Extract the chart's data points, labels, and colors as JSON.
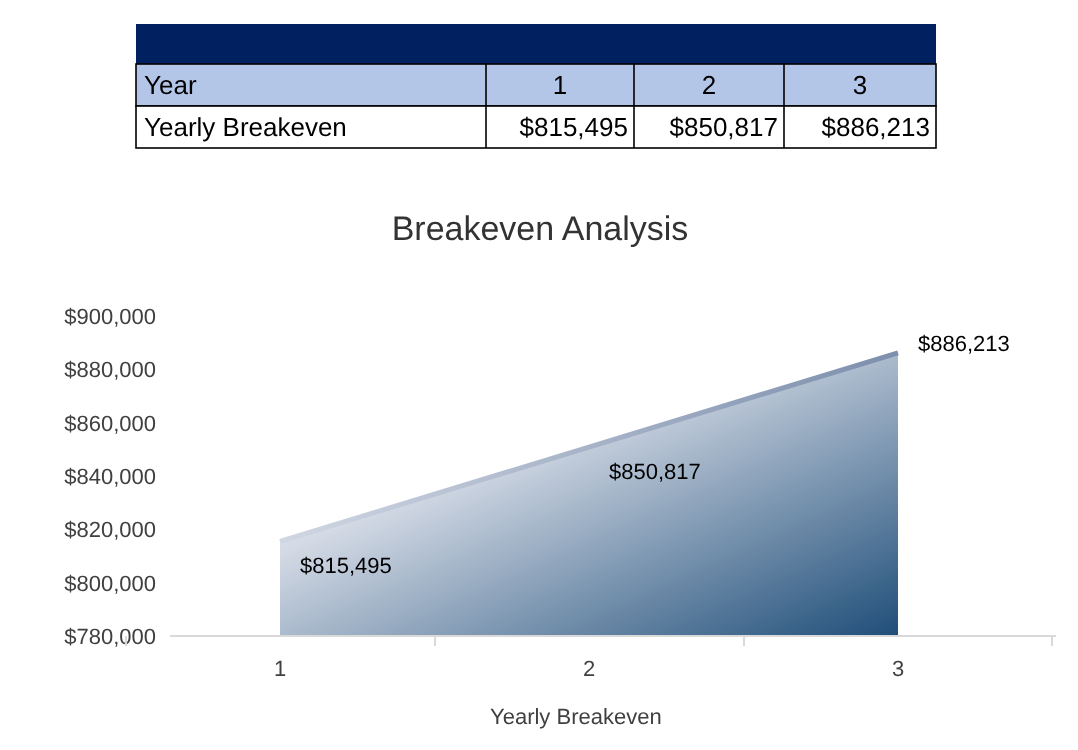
{
  "chart_data": {
    "type": "area",
    "title": "Breakeven Analysis",
    "annotations": [
      "Year"
    ],
    "categories": [
      "1",
      "2",
      "3"
    ],
    "series": [
      {
        "name": "Yearly Breakeven",
        "color": "#1f4e79",
        "values": [
          815495,
          850817,
          886213
        ]
      }
    ],
    "ylim": [
      780000,
      900000
    ],
    "yticks": [
      {
        "value": 780000,
        "label": "$780,000"
      },
      {
        "value": 800000,
        "label": "$800,000"
      },
      {
        "value": 820000,
        "label": "$820,000"
      },
      {
        "value": 840000,
        "label": "$840,000"
      },
      {
        "value": 860000,
        "label": "$860,000"
      },
      {
        "value": 880000,
        "label": "$880,000"
      },
      {
        "value": 900000,
        "label": "$900,000"
      }
    ],
    "value_labels": [
      "$815,495",
      "$850,817",
      "$886,213"
    ],
    "grid": false,
    "legend": "bottom"
  }
}
